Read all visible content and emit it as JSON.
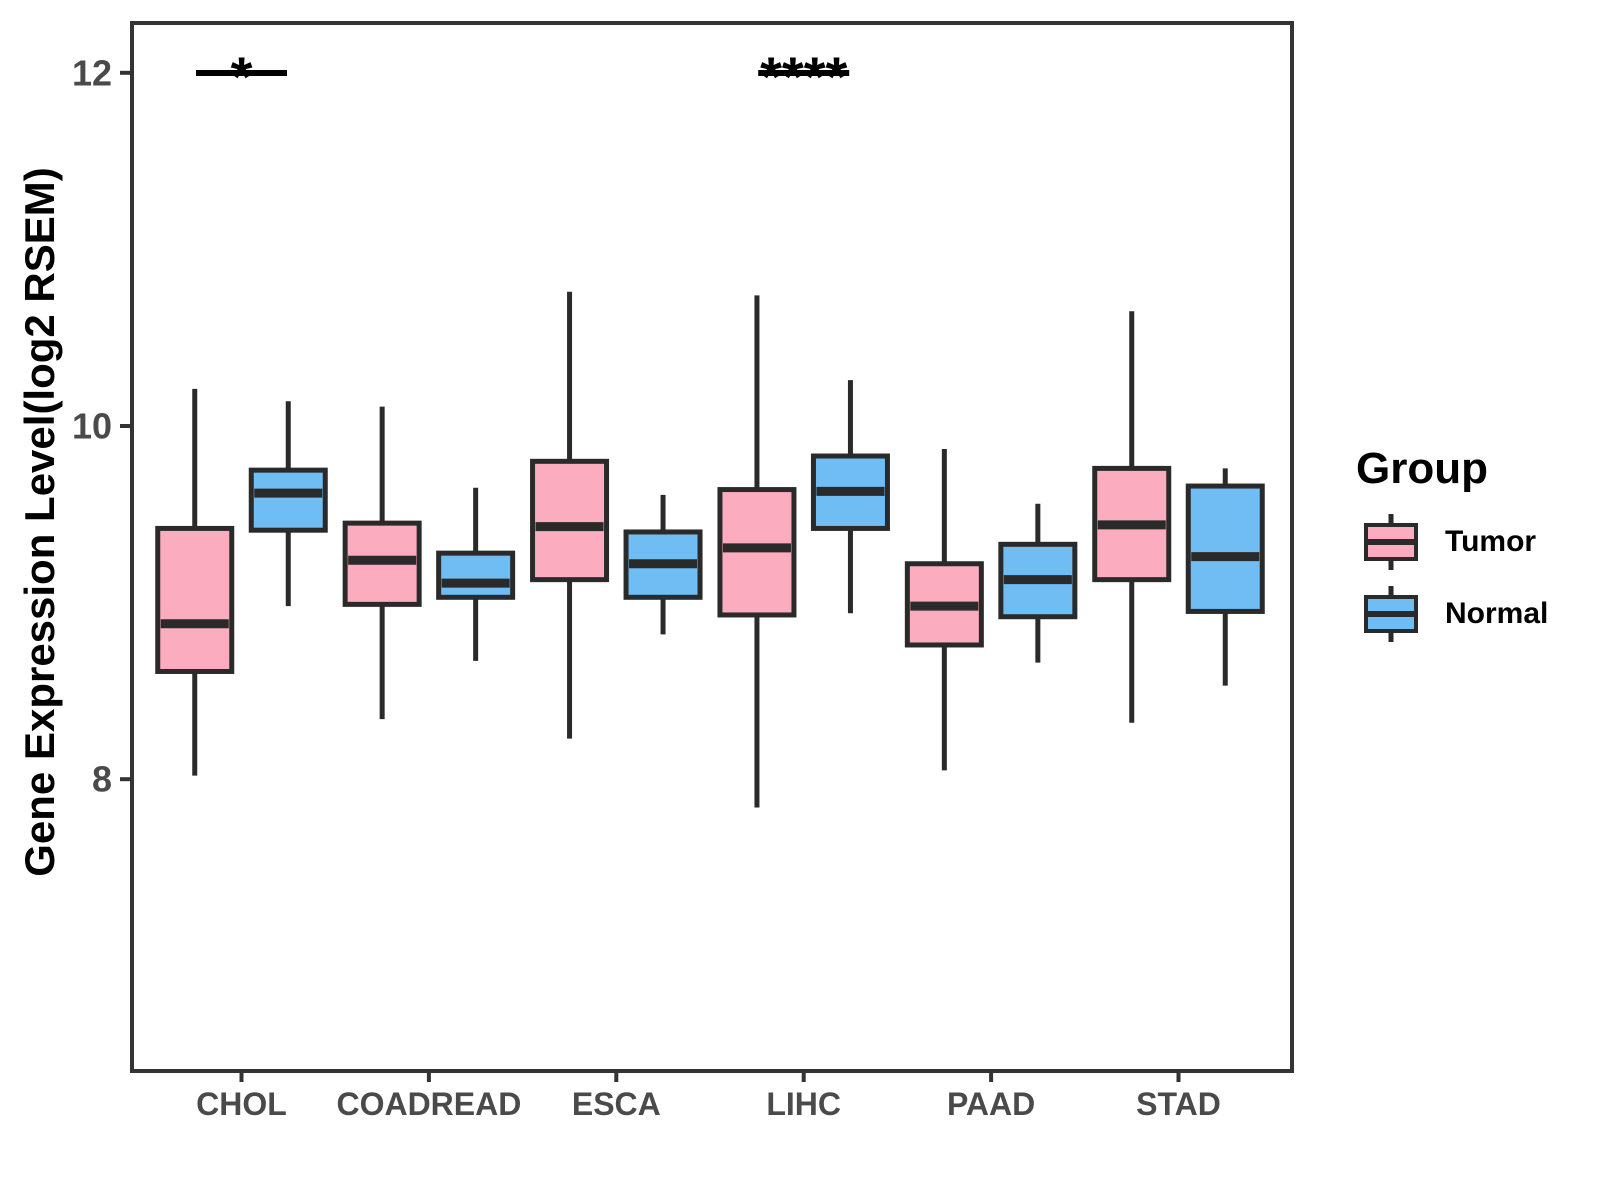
{
  "figure": {
    "background": "#FFFFFF"
  },
  "chart_data": {
    "type": "boxplot",
    "title": "",
    "xlabel": "",
    "ylabel": "Gene Expression Level(log2 RSEM)",
    "categories": [
      "CHOL",
      "COADREAD",
      "ESCA",
      "LIHC",
      "PAAD",
      "STAD"
    ],
    "yticks": [
      8,
      10,
      12
    ],
    "ylim": [
      6.35,
      12.3
    ],
    "grid": "off",
    "legend": {
      "title": "Group",
      "position": "right",
      "entries": [
        {
          "name": "Tumor",
          "color": "#FBACBE"
        },
        {
          "name": "Normal",
          "color": "#70BDF4"
        }
      ]
    },
    "series": [
      {
        "name": "Tumor",
        "color": "#FBACBE",
        "boxes": [
          {
            "category": "CHOL",
            "whisker_low": 8.02,
            "q1": 8.61,
            "median": 8.88,
            "q3": 9.42,
            "whisker_high": 10.21
          },
          {
            "category": "COADREAD",
            "whisker_low": 8.34,
            "q1": 8.99,
            "median": 9.24,
            "q3": 9.45,
            "whisker_high": 10.11
          },
          {
            "category": "ESCA",
            "whisker_low": 8.23,
            "q1": 9.13,
            "median": 9.43,
            "q3": 9.8,
            "whisker_high": 10.76
          },
          {
            "category": "LIHC",
            "whisker_low": 7.84,
            "q1": 8.93,
            "median": 9.31,
            "q3": 9.64,
            "whisker_high": 10.74
          },
          {
            "category": "PAAD",
            "whisker_low": 8.05,
            "q1": 8.76,
            "median": 8.98,
            "q3": 9.22,
            "whisker_high": 9.87
          },
          {
            "category": "STAD",
            "whisker_low": 8.32,
            "q1": 9.13,
            "median": 9.44,
            "q3": 9.76,
            "whisker_high": 10.65
          }
        ]
      },
      {
        "name": "Normal",
        "color": "#70BDF4",
        "boxes": [
          {
            "category": "CHOL",
            "whisker_low": 8.98,
            "q1": 9.41,
            "median": 9.62,
            "q3": 9.75,
            "whisker_high": 10.14
          },
          {
            "category": "COADREAD",
            "whisker_low": 8.67,
            "q1": 9.03,
            "median": 9.11,
            "q3": 9.28,
            "whisker_high": 9.65
          },
          {
            "category": "ESCA",
            "whisker_low": 8.82,
            "q1": 9.03,
            "median": 9.22,
            "q3": 9.4,
            "whisker_high": 9.61
          },
          {
            "category": "LIHC",
            "whisker_low": 8.94,
            "q1": 9.42,
            "median": 9.63,
            "q3": 9.83,
            "whisker_high": 10.26
          },
          {
            "category": "PAAD",
            "whisker_low": 8.66,
            "q1": 8.92,
            "median": 9.13,
            "q3": 9.33,
            "whisker_high": 9.56
          },
          {
            "category": "STAD",
            "whisker_low": 8.53,
            "q1": 8.95,
            "median": 9.26,
            "q3": 9.66,
            "whisker_high": 9.76
          }
        ]
      }
    ],
    "significance": [
      {
        "category": "CHOL",
        "label": "*",
        "y": 12.0
      },
      {
        "category": "LIHC",
        "label": "****",
        "y": 12.0
      }
    ]
  },
  "style": {
    "box_border": "#2A2A2A",
    "panel_border": "#333333",
    "axis_text": "#4A4A4A",
    "axis_title": "#000000",
    "sig_color": "#000000"
  }
}
